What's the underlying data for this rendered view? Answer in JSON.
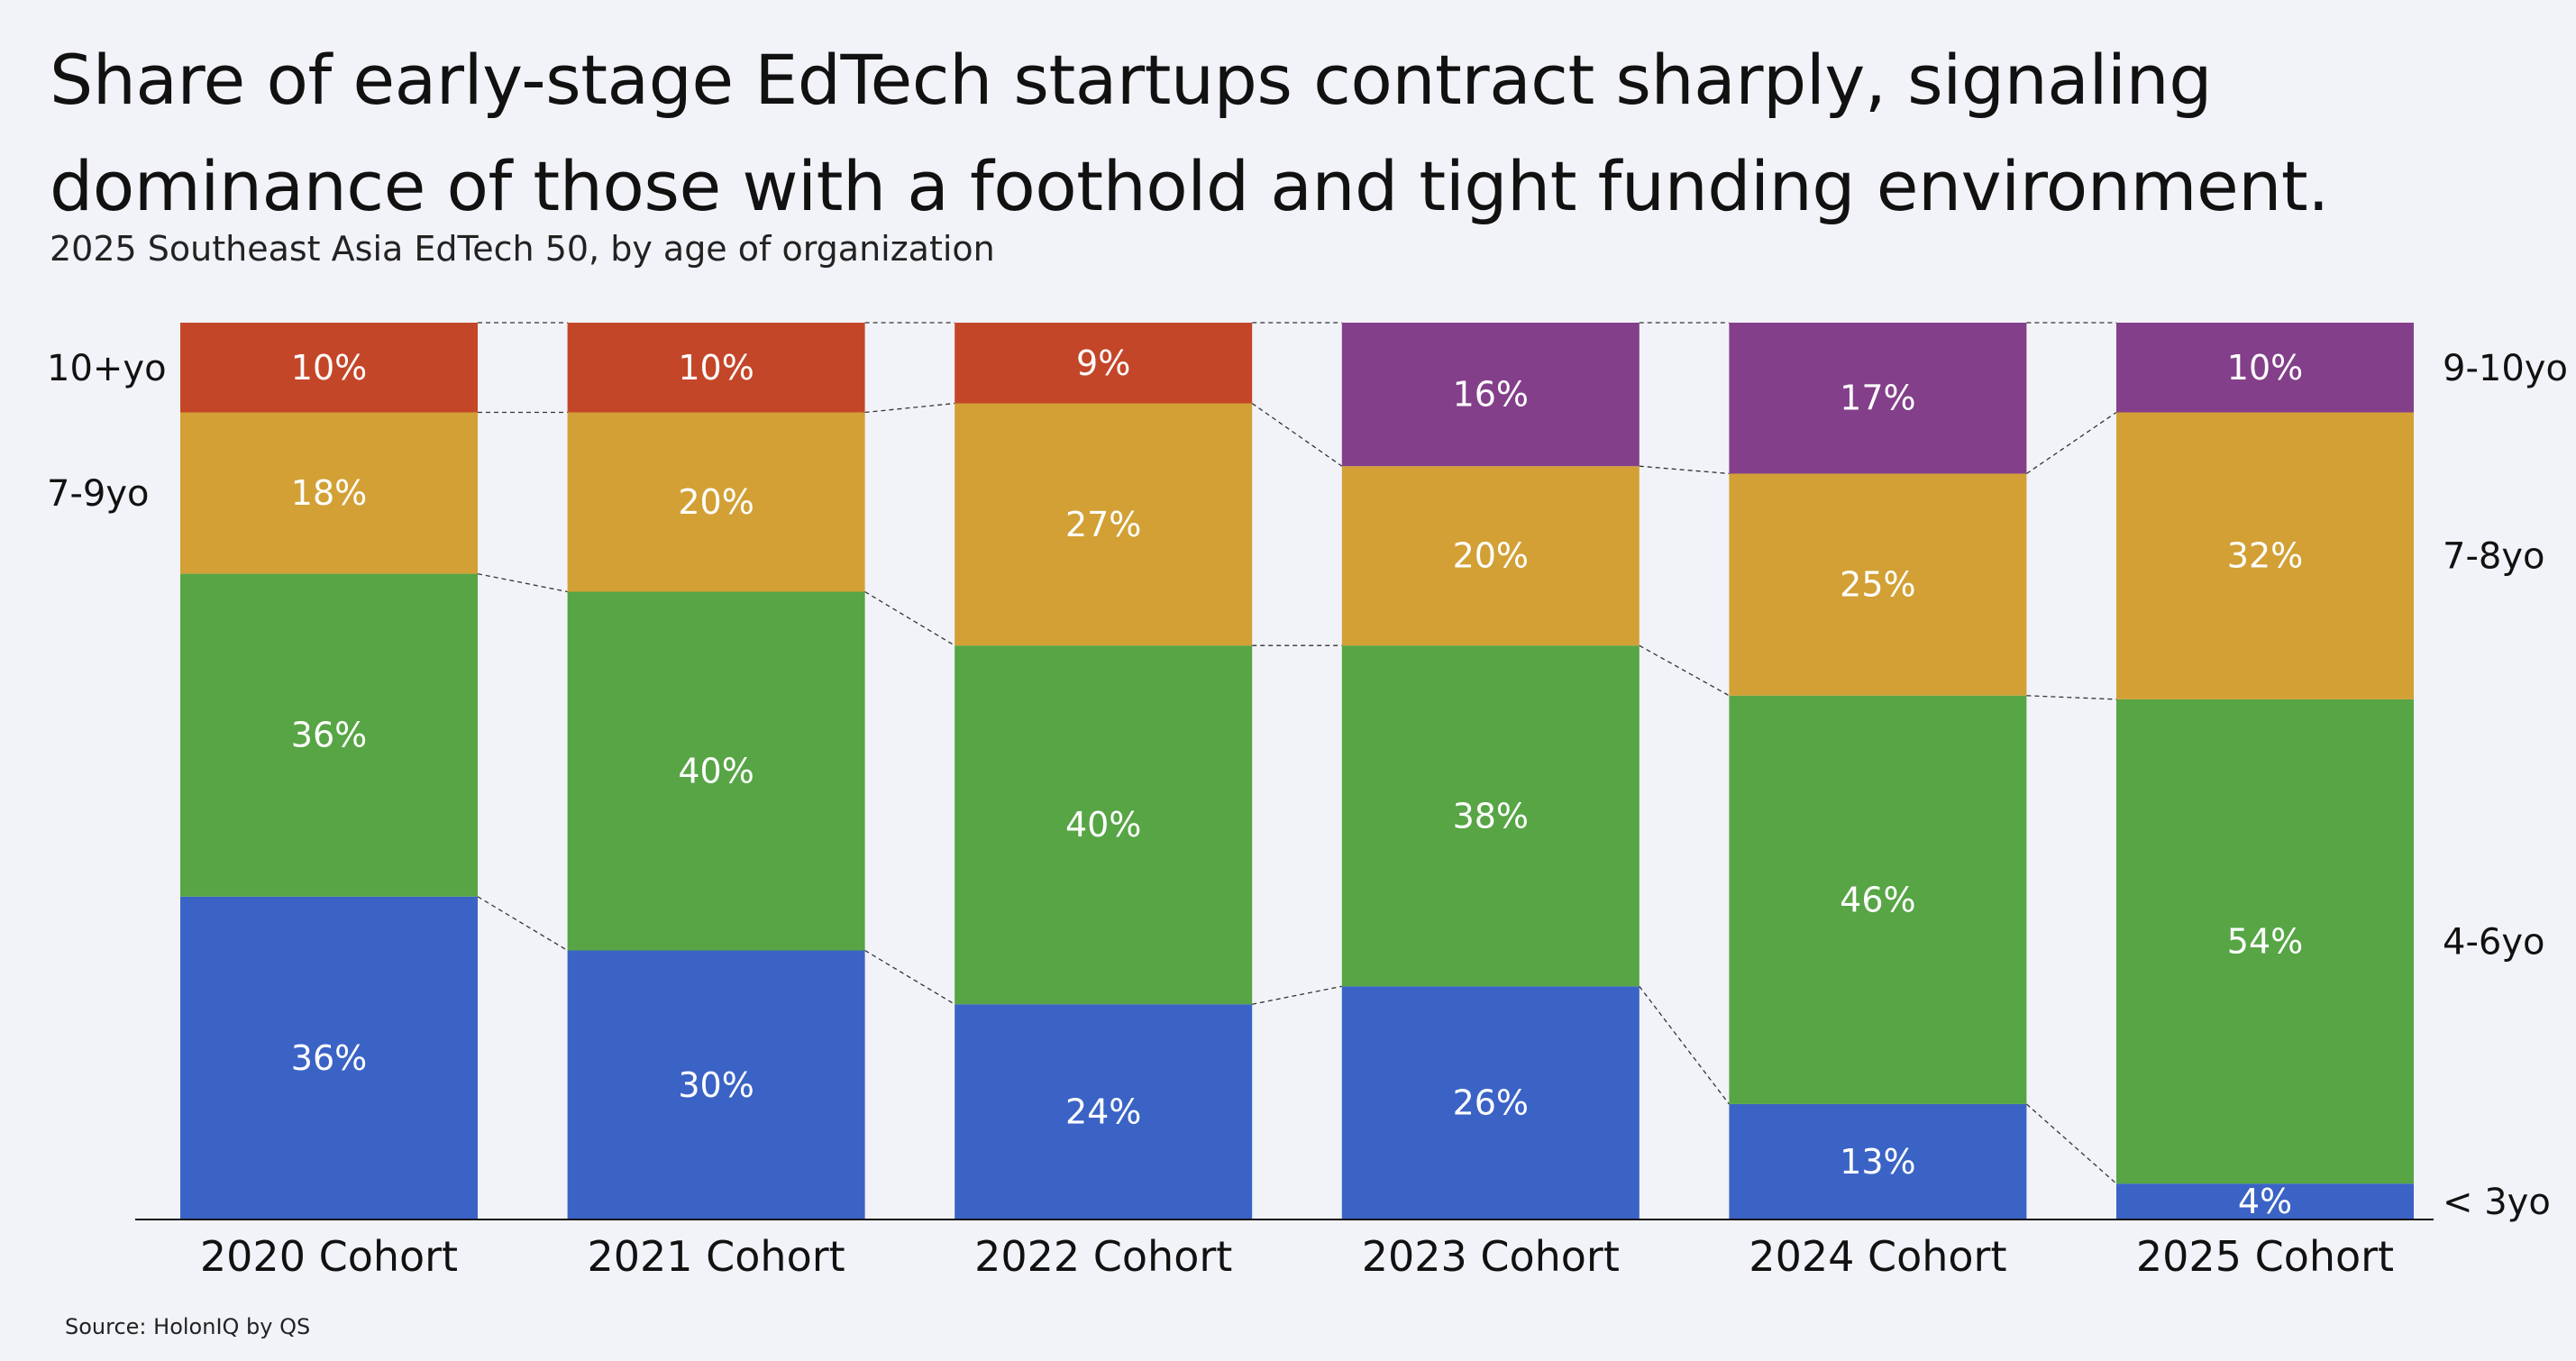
{
  "title_line1": "Share of early-stage EdTech startups contract sharply, signaling",
  "title_line2": "dominance of those with a foothold and tight funding environment.",
  "subtitle": "2025 Southeast Asia EdTech 50, by age of organization",
  "source": "Source: HolonIQ by QS",
  "colors": {
    "young": "#3b63c6",
    "mid": "#57a545",
    "seven": "#d2a035",
    "old_red": "#c44628",
    "old_purple": "#833f8a"
  },
  "chart_data": {
    "type": "bar",
    "stacked": true,
    "normalized": true,
    "title": "Share of early-stage EdTech startups contract sharply, signaling dominance of those with a foothold and tight funding environment.",
    "subtitle": "2025 Southeast Asia EdTech 50, by age of organization",
    "categories": [
      "2020 Cohort",
      "2021 Cohort",
      "2022 Cohort",
      "2023 Cohort",
      "2024 Cohort",
      "2025 Cohort"
    ],
    "ylim": [
      0,
      100
    ],
    "bars": [
      {
        "segments": [
          {
            "value": 36,
            "label": "36%",
            "color": "young"
          },
          {
            "value": 36,
            "label": "36%",
            "color": "mid"
          },
          {
            "value": 18,
            "label": "18%",
            "color": "seven"
          },
          {
            "value": 10,
            "label": "10%",
            "color": "old_red"
          }
        ]
      },
      {
        "segments": [
          {
            "value": 30,
            "label": "30%",
            "color": "young"
          },
          {
            "value": 40,
            "label": "40%",
            "color": "mid"
          },
          {
            "value": 20,
            "label": "20%",
            "color": "seven"
          },
          {
            "value": 10,
            "label": "10%",
            "color": "old_red"
          }
        ]
      },
      {
        "segments": [
          {
            "value": 24,
            "label": "24%",
            "color": "young"
          },
          {
            "value": 40,
            "label": "40%",
            "color": "mid"
          },
          {
            "value": 27,
            "label": "27%",
            "color": "seven"
          },
          {
            "value": 9,
            "label": "9%",
            "color": "old_red"
          }
        ]
      },
      {
        "segments": [
          {
            "value": 26,
            "label": "26%",
            "color": "young"
          },
          {
            "value": 38,
            "label": "38%",
            "color": "mid"
          },
          {
            "value": 20,
            "label": "20%",
            "color": "seven"
          },
          {
            "value": 16,
            "label": "16%",
            "color": "old_purple"
          }
        ]
      },
      {
        "segments": [
          {
            "value": 13,
            "label": "13%",
            "color": "young"
          },
          {
            "value": 46,
            "label": "46%",
            "color": "mid"
          },
          {
            "value": 25,
            "label": "25%",
            "color": "seven"
          },
          {
            "value": 17,
            "label": "17%",
            "color": "old_purple"
          }
        ]
      },
      {
        "segments": [
          {
            "value": 4,
            "label": "4%",
            "color": "young"
          },
          {
            "value": 54,
            "label": "54%",
            "color": "mid"
          },
          {
            "value": 32,
            "label": "32%",
            "color": "seven"
          },
          {
            "value": 10,
            "label": "10%",
            "color": "old_purple"
          }
        ]
      }
    ],
    "left_legend": [
      {
        "label": "10+yo",
        "anchor_bar": 0,
        "segment": 3
      },
      {
        "label": "7-9yo",
        "anchor_bar": 0,
        "segment": 2
      }
    ],
    "right_legend": [
      {
        "label": "9-10yo",
        "anchor_bar": 5,
        "segment": 3
      },
      {
        "label": "7-8yo",
        "anchor_bar": 5,
        "segment": 2
      },
      {
        "label": "4-6yo",
        "anchor_bar": 5,
        "segment": 1
      },
      {
        "label": "< 3yo",
        "anchor_bar": 5,
        "segment": 0
      }
    ]
  }
}
